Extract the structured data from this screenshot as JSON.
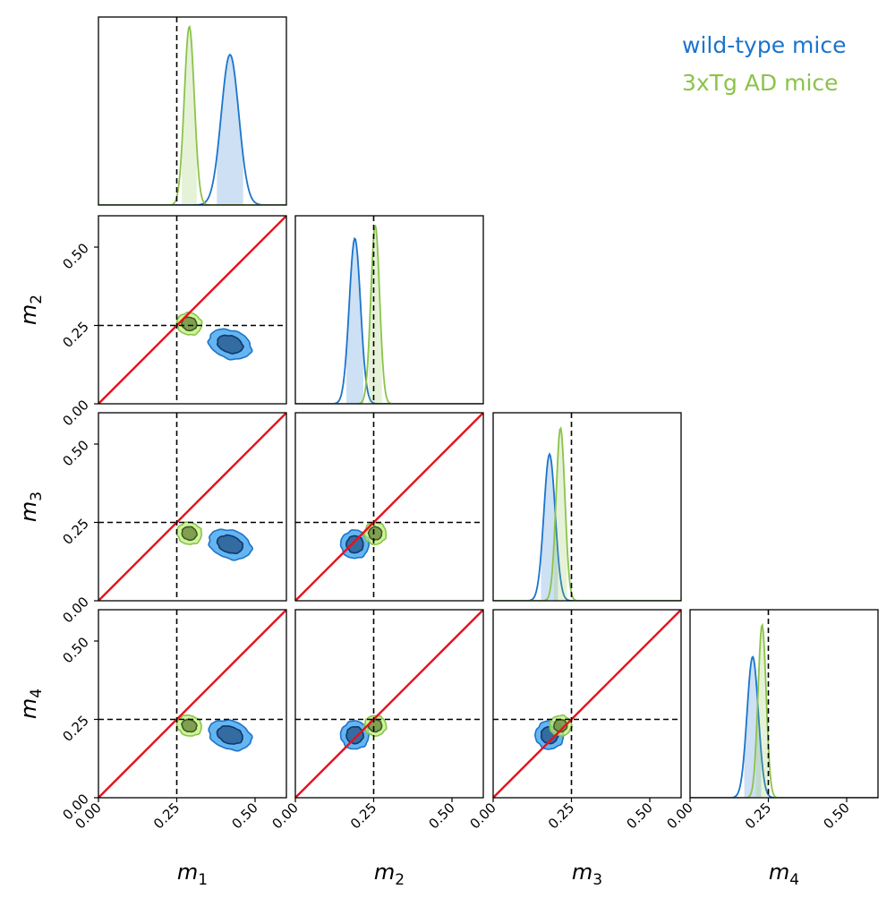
{
  "chart_data": {
    "type": "corner",
    "parameters": [
      "m1",
      "m2",
      "m3",
      "m4"
    ],
    "axis_labels": [
      {
        "base": "m",
        "sub": "1"
      },
      {
        "base": "m",
        "sub": "2"
      },
      {
        "base": "m",
        "sub": "3"
      },
      {
        "base": "m",
        "sub": "4"
      }
    ],
    "axis_range": [
      0.0,
      0.6
    ],
    "ticks": [
      0.0,
      0.25,
      0.5
    ],
    "tick_labels": [
      "0.00",
      "0.25",
      "0.50"
    ],
    "truth": [
      0.25,
      0.25,
      0.25,
      0.25
    ],
    "identity_line_color": "#e8121e",
    "truth_line_color": "#000000",
    "legend_position": "top-right",
    "series": [
      {
        "name": "wild-type mice",
        "color": "#1b74cc",
        "fill_inner": "#2b5f94",
        "fill_outer": "#4aa8ee",
        "mean": [
          0.42,
          0.19,
          0.18,
          0.2
        ],
        "std": [
          0.028,
          0.018,
          0.018,
          0.018
        ],
        "marginal_peak": [
          0.8,
          0.88,
          0.78,
          0.75
        ]
      },
      {
        "name": "3xTg AD mice",
        "color": "#8bc34a",
        "fill_inner": "#6d8a3e",
        "fill_outer": "#bdf07a",
        "mean": [
          0.29,
          0.255,
          0.215,
          0.23
        ],
        "std": [
          0.016,
          0.014,
          0.014,
          0.013
        ],
        "marginal_peak": [
          0.95,
          0.95,
          0.92,
          0.92
        ]
      }
    ]
  }
}
